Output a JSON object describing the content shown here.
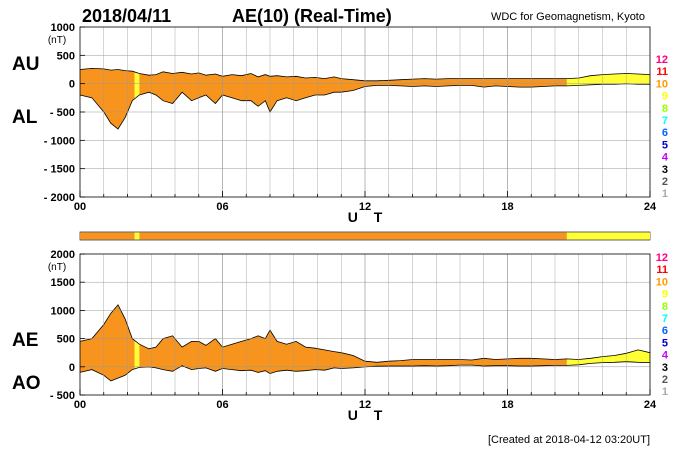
{
  "header": {
    "date": "2018/04/11",
    "title": "AE(10) (Real-Time)",
    "source": "WDC for Geomagnetism, Kyoto"
  },
  "footer": {
    "created": "[Created at 2018-04-12 03:20UT]"
  },
  "key": {
    "labels": [
      "12",
      "11",
      "10",
      "9",
      "8",
      "7",
      "6",
      "5",
      "4",
      "3",
      "2",
      "1"
    ],
    "colors": [
      "#ff0080",
      "#ff0000",
      "#ff9900",
      "#ffff00",
      "#99ff00",
      "#00ffff",
      "#0066ff",
      "#0000cc",
      "#cc00ff",
      "#000000",
      "#555555",
      "#aaaaaa"
    ]
  },
  "colors": {
    "orange": "#f7941d",
    "yellow": "#ffff33",
    "line": "#000000",
    "grid": "#999999"
  },
  "chart_data": [
    {
      "type": "area",
      "series_labels": [
        "AU",
        "AL"
      ],
      "unit": "(nT)",
      "xlabel": "U T",
      "ylim": [
        -2000,
        1000
      ],
      "yticks": [
        1000,
        500,
        0,
        -500,
        -1000,
        -1500,
        -2000
      ],
      "xlim": [
        0,
        24
      ],
      "xticks": [
        0,
        6,
        12,
        18,
        24
      ],
      "xtick_labels": [
        "00",
        "06",
        "12",
        "18",
        "24"
      ],
      "grid": true,
      "hours": [
        0,
        0.5,
        1,
        1.3,
        1.6,
        1.9,
        2.2,
        2.5,
        2.9,
        3.2,
        3.5,
        3.9,
        4.3,
        4.7,
        5,
        5.3,
        5.7,
        6,
        6.4,
        6.8,
        7.2,
        7.5,
        7.8,
        8,
        8.3,
        8.7,
        9.1,
        9.5,
        9.9,
        10.3,
        10.7,
        11,
        11.5,
        12,
        12.5,
        13,
        13.5,
        14,
        14.5,
        15,
        15.5,
        16,
        16.5,
        17,
        17.5,
        18,
        18.5,
        19,
        19.5,
        20,
        20.5,
        21,
        21.5,
        22,
        22.5,
        23,
        23.5,
        24
      ],
      "au": [
        250,
        270,
        260,
        240,
        250,
        230,
        220,
        180,
        150,
        160,
        210,
        180,
        200,
        170,
        190,
        150,
        170,
        130,
        160,
        140,
        180,
        120,
        160,
        130,
        140,
        120,
        130,
        100,
        110,
        90,
        120,
        90,
        70,
        50,
        50,
        60,
        70,
        80,
        90,
        80,
        90,
        90,
        90,
        90,
        90,
        90,
        90,
        90,
        90,
        90,
        90,
        100,
        140,
        160,
        170,
        180,
        170,
        160
      ],
      "al": [
        -200,
        -250,
        -500,
        -700,
        -800,
        -600,
        -300,
        -200,
        -150,
        -200,
        -300,
        -350,
        -150,
        -300,
        -250,
        -200,
        -350,
        -200,
        -250,
        -300,
        -300,
        -400,
        -300,
        -500,
        -300,
        -250,
        -300,
        -250,
        -200,
        -200,
        -150,
        -150,
        -120,
        -50,
        -30,
        -30,
        -40,
        -50,
        -40,
        -50,
        -40,
        -30,
        -30,
        -60,
        -40,
        -50,
        -60,
        -60,
        -50,
        -40,
        -40,
        -30,
        -20,
        -10,
        -10,
        0,
        -10,
        -10
      ],
      "station_segments": [
        {
          "start": 0,
          "end": 2.3,
          "stations": 10
        },
        {
          "start": 2.3,
          "end": 2.5,
          "stations": 9
        },
        {
          "start": 2.5,
          "end": 20.5,
          "stations": 10
        },
        {
          "start": 20.5,
          "end": 24,
          "stations": 9
        }
      ]
    },
    {
      "type": "area",
      "series_labels": [
        "AE",
        "AO"
      ],
      "unit": "(nT)",
      "xlabel": "U T",
      "ylim": [
        -500,
        2000
      ],
      "yticks": [
        2000,
        1500,
        1000,
        500,
        0,
        -500
      ],
      "xlim": [
        0,
        24
      ],
      "xticks": [
        0,
        6,
        12,
        18,
        24
      ],
      "xtick_labels": [
        "00",
        "06",
        "12",
        "18",
        "24"
      ],
      "grid": true,
      "hours": [
        0,
        0.5,
        1,
        1.3,
        1.6,
        1.9,
        2.2,
        2.5,
        2.9,
        3.2,
        3.5,
        3.9,
        4.3,
        4.7,
        5,
        5.3,
        5.7,
        6,
        6.4,
        6.8,
        7.2,
        7.5,
        7.8,
        8,
        8.3,
        8.7,
        9.1,
        9.5,
        9.9,
        10.3,
        10.7,
        11,
        11.5,
        12,
        12.5,
        13,
        13.5,
        14,
        14.5,
        15,
        15.5,
        16,
        16.5,
        17,
        17.5,
        18,
        18.5,
        19,
        19.5,
        20,
        20.5,
        21,
        21.5,
        22,
        22.5,
        23,
        23.5,
        24
      ],
      "ae": [
        450,
        500,
        750,
        950,
        1100,
        850,
        500,
        400,
        320,
        350,
        500,
        550,
        350,
        450,
        450,
        380,
        500,
        350,
        400,
        450,
        500,
        550,
        500,
        650,
        450,
        400,
        450,
        350,
        330,
        300,
        270,
        250,
        200,
        100,
        80,
        100,
        110,
        130,
        130,
        130,
        130,
        130,
        120,
        150,
        130,
        140,
        150,
        150,
        140,
        130,
        140,
        130,
        150,
        180,
        200,
        240,
        300,
        250
      ],
      "ao": [
        -100,
        -50,
        -150,
        -250,
        -200,
        -150,
        -50,
        -10,
        0,
        -20,
        -50,
        -80,
        20,
        -50,
        -30,
        -20,
        -80,
        -30,
        -50,
        -70,
        -60,
        -100,
        -70,
        -120,
        -80,
        -60,
        -80,
        -70,
        -50,
        -60,
        -20,
        -30,
        -20,
        0,
        10,
        15,
        15,
        15,
        20,
        15,
        20,
        30,
        30,
        15,
        20,
        20,
        15,
        15,
        20,
        25,
        25,
        35,
        60,
        75,
        80,
        90,
        80,
        75
      ],
      "station_segments": [
        {
          "start": 0,
          "end": 2.3,
          "stations": 10
        },
        {
          "start": 2.3,
          "end": 2.5,
          "stations": 9
        },
        {
          "start": 2.5,
          "end": 20.5,
          "stations": 10
        },
        {
          "start": 20.5,
          "end": 24,
          "stations": 9
        }
      ]
    }
  ]
}
